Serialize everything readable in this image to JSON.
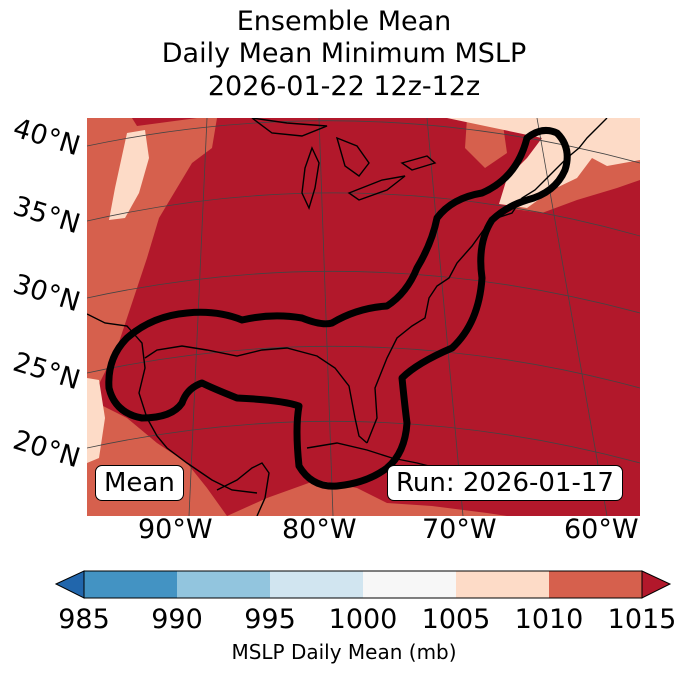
{
  "title": {
    "line1": "Ensemble Mean",
    "line2": "Daily Mean Minimum MSLP",
    "line3": "2026-01-22 12z-12z"
  },
  "map": {
    "lat_labels": [
      "40°N",
      "35°N",
      "30°N",
      "25°N",
      "20°N"
    ],
    "lon_labels": [
      "90°W",
      "80°W",
      "70°W",
      "60°W"
    ],
    "mean_label": "Mean",
    "run_label": "Run: 2026-01-17",
    "region_fill": "#b2182b",
    "contour_color": "#000000",
    "coastline_color": "#000000",
    "gridline_color": "#444444",
    "extent": {
      "lon_min": -97,
      "lon_max": -58,
      "lat_min": 17,
      "lat_max": 41
    }
  },
  "colorbar": {
    "label": "MSLP Daily Mean (mb)",
    "ticks": [
      "985",
      "990",
      "995",
      "1000",
      "1005",
      "1010",
      "1015"
    ],
    "colors": [
      "#2166ac",
      "#4393c3",
      "#92c5de",
      "#d1e5f0",
      "#f7f7f7",
      "#fddbc7",
      "#d6604d",
      "#b2182b"
    ],
    "extend": "both"
  }
}
